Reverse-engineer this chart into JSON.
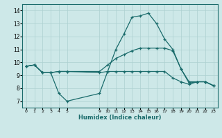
{
  "xlabel": "Humidex (Indice chaleur)",
  "bg_color": "#cde8e8",
  "grid_color": "#add0d0",
  "line_color": "#1a6b6b",
  "xlim": [
    -0.5,
    23.5
  ],
  "ylim": [
    6.5,
    14.5
  ],
  "yticks": [
    7,
    8,
    9,
    10,
    11,
    12,
    13,
    14
  ],
  "xtick_positions": [
    0,
    1,
    2,
    3,
    4,
    5,
    9,
    10,
    11,
    12,
    13,
    14,
    15,
    16,
    17,
    18,
    19,
    20,
    21,
    22,
    23
  ],
  "xtick_labels": [
    "0",
    "1",
    "2",
    "3",
    "4",
    "5",
    "9",
    "10",
    "11",
    "12",
    "13",
    "14",
    "15",
    "16",
    "17",
    "18",
    "19",
    "20",
    "21",
    "22",
    "23"
  ],
  "line1_x": [
    0,
    1,
    2,
    3,
    4,
    5,
    9,
    10,
    11,
    12,
    13,
    14,
    15,
    16,
    17,
    18,
    19,
    20,
    21,
    22,
    23
  ],
  "line1_y": [
    9.7,
    9.8,
    9.2,
    9.2,
    7.6,
    7.0,
    7.6,
    9.3,
    11.0,
    12.2,
    13.5,
    13.6,
    13.8,
    13.0,
    11.8,
    11.0,
    9.5,
    8.5,
    8.5,
    8.5,
    8.2
  ],
  "line2_x": [
    0,
    1,
    2,
    3,
    4,
    5,
    9,
    10,
    11,
    12,
    13,
    14,
    15,
    16,
    17,
    18,
    19,
    20,
    21,
    22,
    23
  ],
  "line2_y": [
    9.7,
    9.8,
    9.2,
    9.2,
    9.3,
    9.3,
    9.3,
    9.8,
    10.3,
    10.6,
    10.9,
    11.1,
    11.1,
    11.1,
    11.1,
    10.9,
    9.5,
    8.4,
    8.5,
    8.5,
    8.2
  ],
  "line3_x": [
    0,
    1,
    2,
    3,
    4,
    5,
    9,
    10,
    11,
    12,
    13,
    14,
    15,
    16,
    17,
    18,
    19,
    20,
    21,
    22,
    23
  ],
  "line3_y": [
    9.7,
    9.8,
    9.2,
    9.2,
    9.3,
    9.3,
    9.2,
    9.3,
    9.3,
    9.3,
    9.3,
    9.3,
    9.3,
    9.3,
    9.3,
    8.8,
    8.5,
    8.3,
    8.5,
    8.5,
    8.2
  ]
}
